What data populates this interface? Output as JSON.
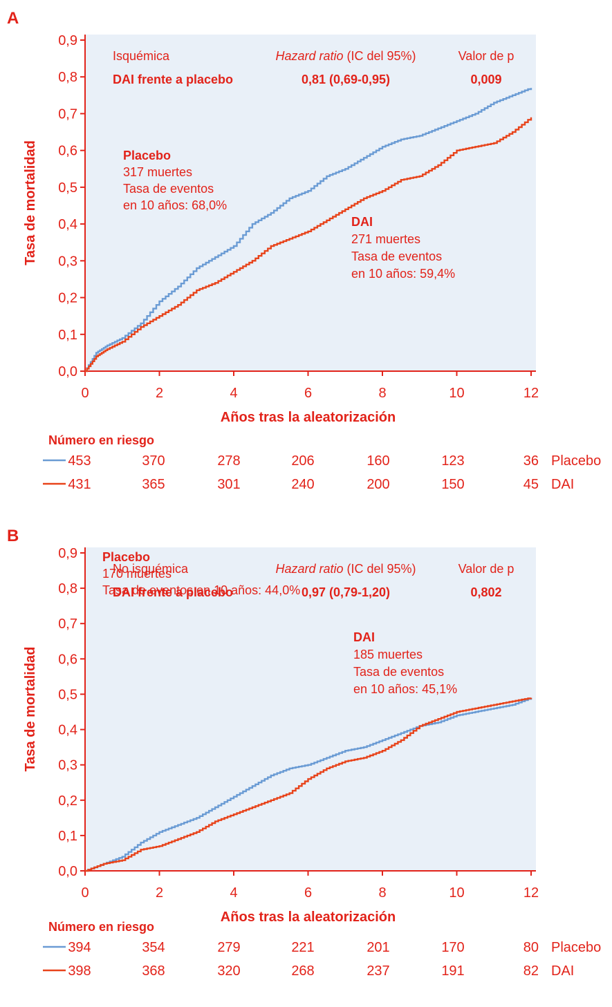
{
  "colors": {
    "accent": "#e2231a",
    "placebo": "#6a9bd4",
    "dai": "#e8431a",
    "plot_bg": "#e9f0f8"
  },
  "chart_data": [
    {
      "type": "line",
      "panel_letter": "A",
      "xlabel": "Años tras la aleatorización",
      "ylabel": "Tasa de mortalidad",
      "xlim": [
        0,
        12
      ],
      "ylim": [
        0,
        0.9
      ],
      "x_ticks": [
        "0",
        "2",
        "4",
        "6",
        "8",
        "10",
        "12"
      ],
      "y_ticks": [
        "0,0",
        "0,1",
        "0,2",
        "0,3",
        "0,4",
        "0,5",
        "0,6",
        "0,7",
        "0,8",
        "0,9"
      ],
      "grid": false,
      "stats": {
        "col1_header": "Isquémica",
        "col1_value": "DAI frente a placebo",
        "col2_header_italic": "Hazard ratio",
        "col2_header_rest": " (IC del 95%)",
        "col2_value": "0,81 (0,69-0,95)",
        "col3_header": "Valor de p",
        "col3_value": "0,009"
      },
      "annotations": {
        "placebo": {
          "title": "Placebo",
          "lines": [
            "317 muertes",
            "Tasa de eventos",
            "en 10 años: 68,0%"
          ]
        },
        "dai": {
          "title": "DAI",
          "lines": [
            "271 muertes",
            "Tasa de eventos",
            "en 10 años: 59,4%"
          ]
        }
      },
      "series": [
        {
          "name": "Placebo",
          "color": "#6a9bd4",
          "x": [
            0,
            0.3,
            0.6,
            1,
            1.5,
            2,
            2.5,
            3,
            3.5,
            4,
            4.5,
            5,
            5.5,
            6,
            6.5,
            7,
            7.5,
            8,
            8.5,
            9,
            9.5,
            10,
            10.5,
            11,
            11.5,
            12
          ],
          "y": [
            0,
            0.05,
            0.07,
            0.09,
            0.13,
            0.19,
            0.23,
            0.28,
            0.31,
            0.34,
            0.4,
            0.43,
            0.47,
            0.49,
            0.53,
            0.55,
            0.58,
            0.61,
            0.63,
            0.64,
            0.66,
            0.68,
            0.7,
            0.73,
            0.75,
            0.77
          ]
        },
        {
          "name": "DAI",
          "color": "#e8431a",
          "x": [
            0,
            0.3,
            0.6,
            1,
            1.5,
            2,
            2.5,
            3,
            3.5,
            4,
            4.5,
            5,
            5.5,
            6,
            6.5,
            7,
            7.5,
            8,
            8.5,
            9,
            9.5,
            10,
            10.5,
            11,
            11.5,
            12
          ],
          "y": [
            0,
            0.04,
            0.06,
            0.08,
            0.12,
            0.15,
            0.18,
            0.22,
            0.24,
            0.27,
            0.3,
            0.34,
            0.36,
            0.38,
            0.41,
            0.44,
            0.47,
            0.49,
            0.52,
            0.53,
            0.56,
            0.6,
            0.61,
            0.62,
            0.65,
            0.69
          ]
        }
      ],
      "risk": {
        "label": "Número en riesgo",
        "rows": [
          {
            "name": "Placebo",
            "color": "#6a9bd4",
            "values": [
              "453",
              "370",
              "278",
              "206",
              "160",
              "123",
              "36"
            ]
          },
          {
            "name": "DAI",
            "color": "#e8431a",
            "values": [
              "431",
              "365",
              "301",
              "240",
              "200",
              "150",
              "45"
            ]
          }
        ]
      }
    },
    {
      "type": "line",
      "panel_letter": "B",
      "xlabel": "Años tras la aleatorización",
      "ylabel": "Tasa de mortalidad",
      "xlim": [
        0,
        12
      ],
      "ylim": [
        0,
        0.9
      ],
      "x_ticks": [
        "0",
        "2",
        "4",
        "6",
        "8",
        "10",
        "12"
      ],
      "y_ticks": [
        "0,0",
        "0,1",
        "0,2",
        "0,3",
        "0,4",
        "0,5",
        "0,6",
        "0,7",
        "0,8",
        "0,9"
      ],
      "grid": false,
      "stats": {
        "col1_header": "No isquémica",
        "col1_value": "DAI frente a placebo",
        "col2_header_italic": "Hazard ratio",
        "col2_header_rest": " (IC del 95%)",
        "col2_value": "0,97 (0,79-1,20)",
        "col3_header": "Valor de p",
        "col3_value": "0,802"
      },
      "annotations": {
        "placebo": {
          "title": "Placebo",
          "lines": [
            "170 muertes",
            "Tasa de eventos en 10 años: 44,0%"
          ]
        },
        "dai": {
          "title": "DAI",
          "lines": [
            "185 muertes",
            "Tasa de eventos",
            "en 10 años: 45,1%"
          ]
        }
      },
      "series": [
        {
          "name": "Placebo",
          "color": "#6a9bd4",
          "x": [
            0,
            0.5,
            1,
            1.5,
            2,
            2.5,
            3,
            3.5,
            4,
            4.5,
            5,
            5.5,
            6,
            6.5,
            7,
            7.5,
            8,
            8.5,
            9,
            9.5,
            10,
            10.5,
            11,
            11.5,
            12
          ],
          "y": [
            0,
            0.02,
            0.04,
            0.08,
            0.11,
            0.13,
            0.15,
            0.18,
            0.21,
            0.24,
            0.27,
            0.29,
            0.3,
            0.32,
            0.34,
            0.35,
            0.37,
            0.39,
            0.41,
            0.42,
            0.44,
            0.45,
            0.46,
            0.47,
            0.49
          ]
        },
        {
          "name": "DAI",
          "color": "#e8431a",
          "x": [
            0,
            0.5,
            1,
            1.5,
            2,
            2.5,
            3,
            3.5,
            4,
            4.5,
            5,
            5.5,
            6,
            6.5,
            7,
            7.5,
            8,
            8.5,
            9,
            9.5,
            10,
            10.5,
            11,
            11.5,
            12
          ],
          "y": [
            0,
            0.02,
            0.03,
            0.06,
            0.07,
            0.09,
            0.11,
            0.14,
            0.16,
            0.18,
            0.2,
            0.22,
            0.26,
            0.29,
            0.31,
            0.32,
            0.34,
            0.37,
            0.41,
            0.43,
            0.45,
            0.46,
            0.47,
            0.48,
            0.49
          ]
        }
      ],
      "risk": {
        "label": "Número en riesgo",
        "rows": [
          {
            "name": "Placebo",
            "color": "#6a9bd4",
            "values": [
              "394",
              "354",
              "279",
              "221",
              "201",
              "170",
              "80"
            ]
          },
          {
            "name": "DAI",
            "color": "#e8431a",
            "values": [
              "398",
              "368",
              "320",
              "268",
              "237",
              "191",
              "82"
            ]
          }
        ]
      }
    }
  ]
}
